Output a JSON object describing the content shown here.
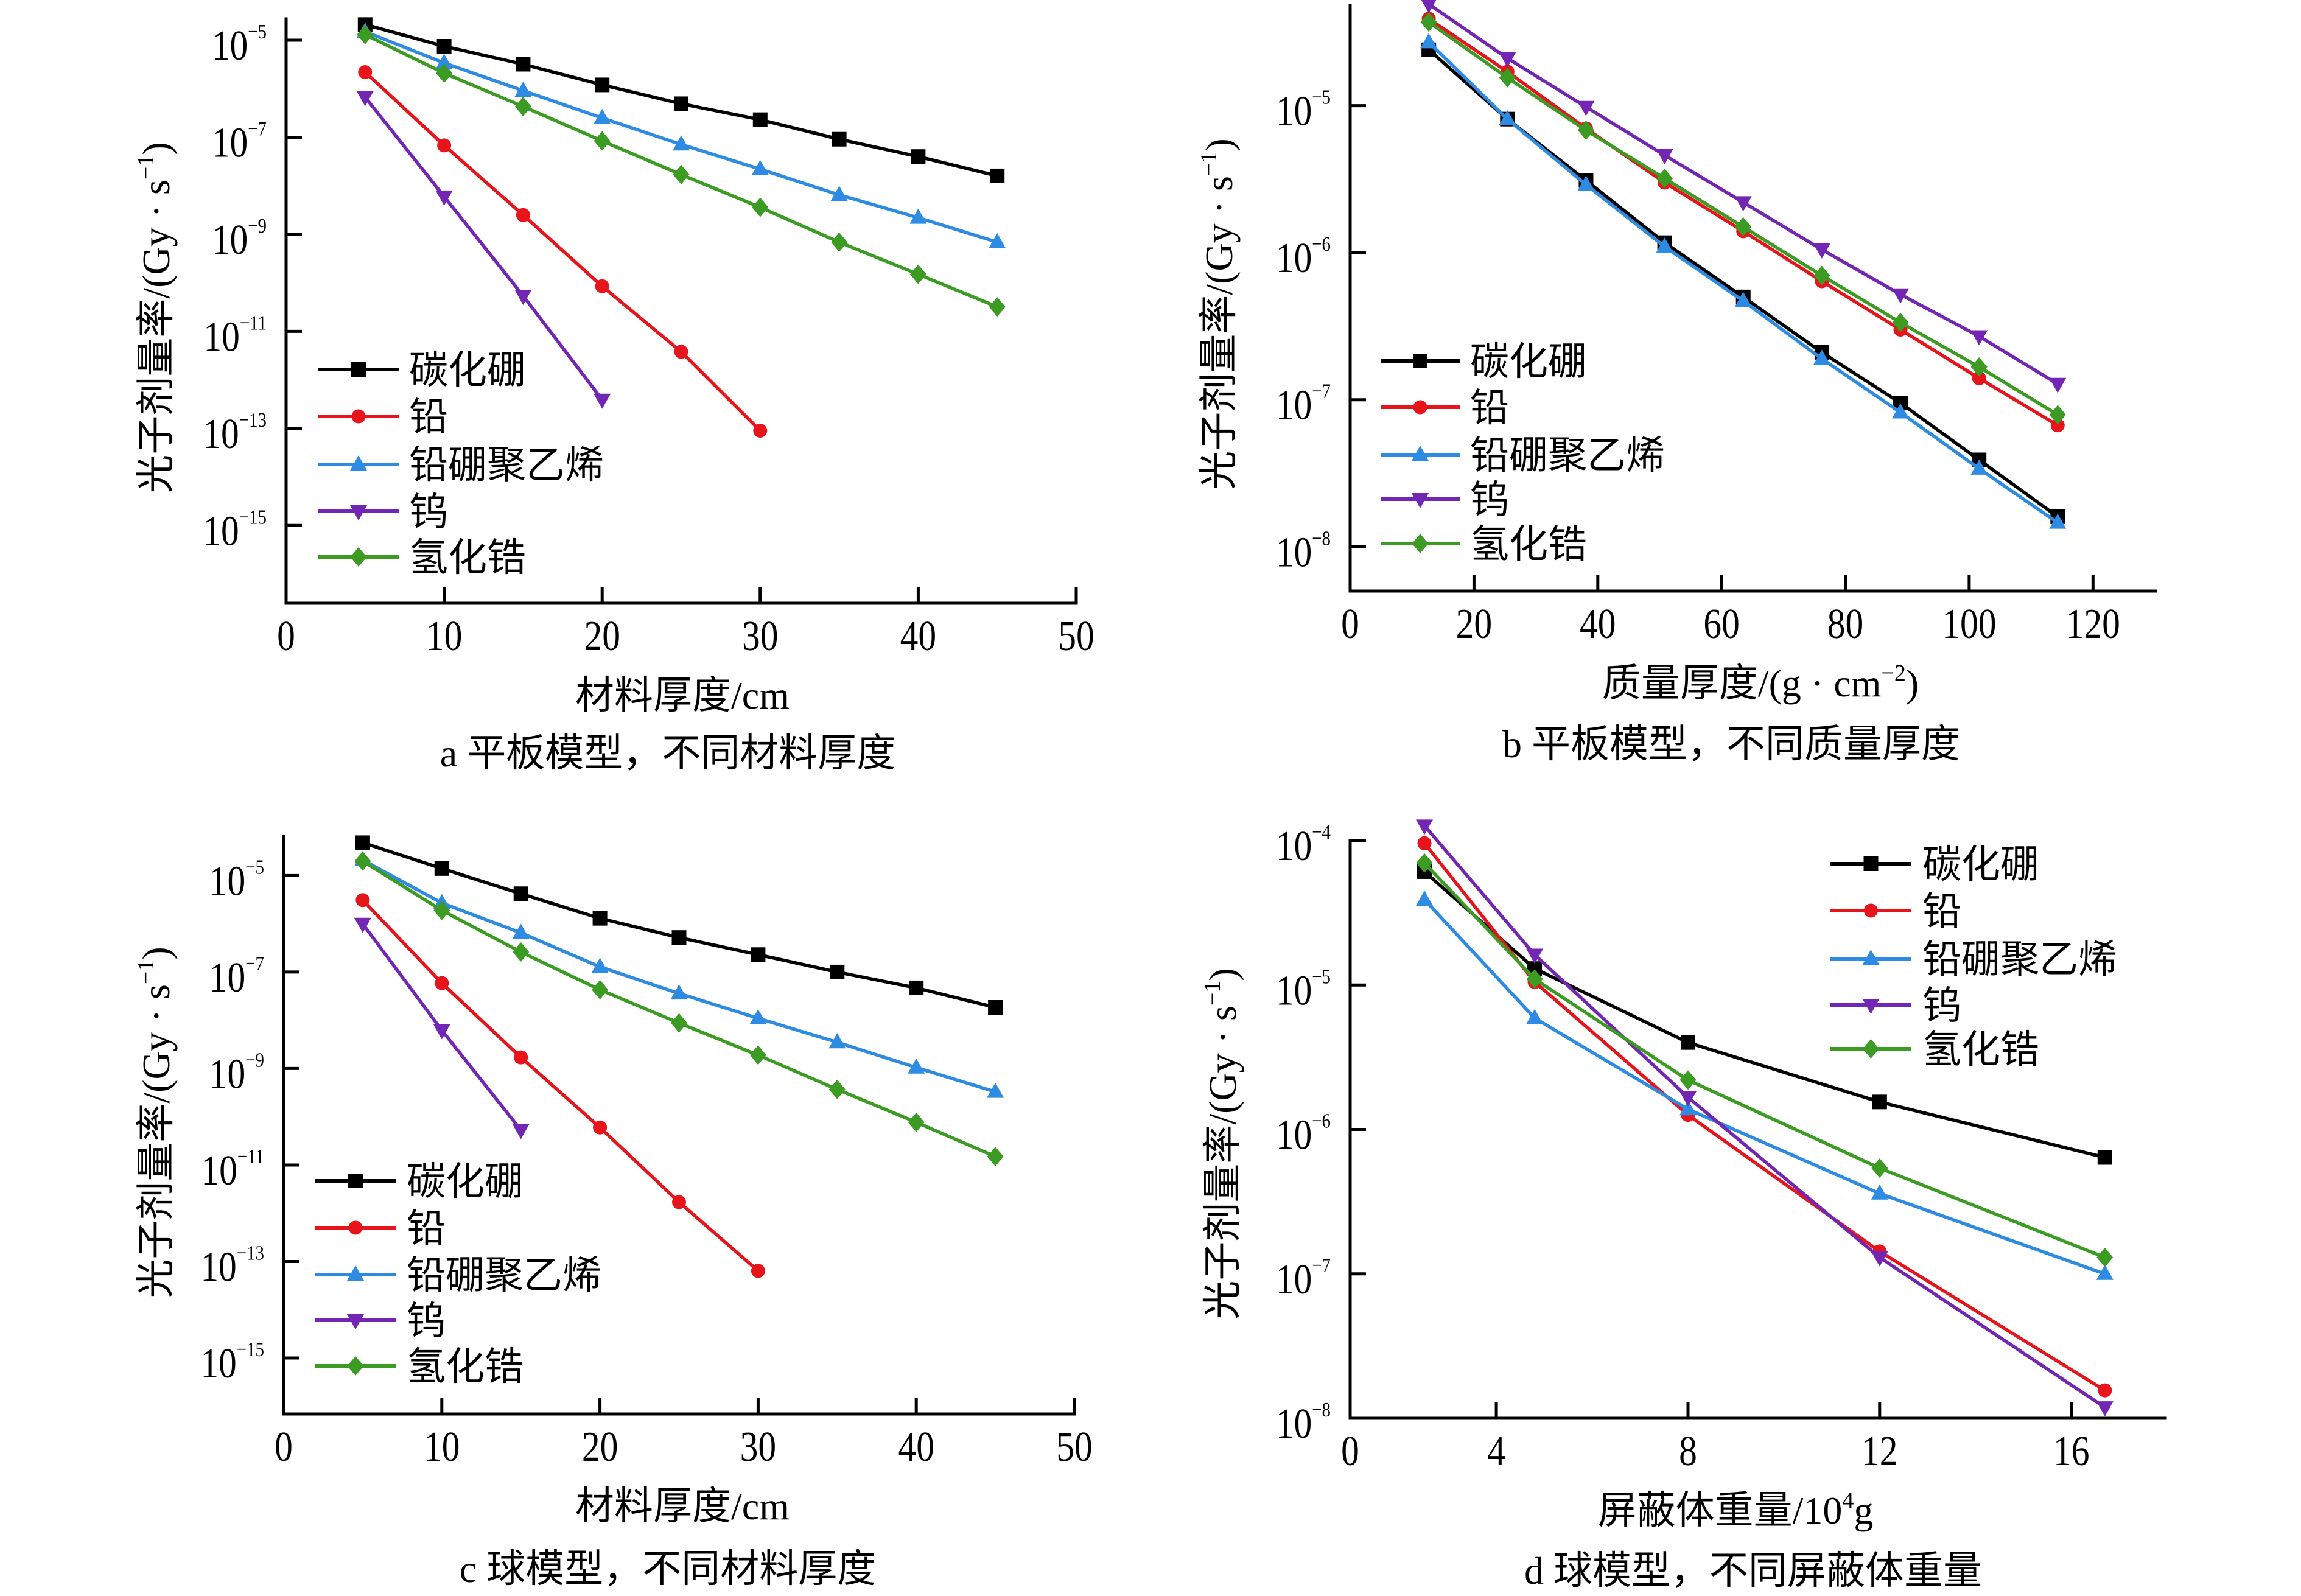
{
  "chart_data": [
    {
      "panel": "a",
      "type": "line",
      "caption": "a 平板模型，不同材料厚度",
      "xlabel": {
        "main": "材料厚度/cm"
      },
      "ylabel": {
        "main": "光子剂量率/(Gy · s",
        "sup": "−1",
        "tail": ")"
      },
      "x_scale": "linear",
      "y_scale": "log",
      "xlim": [
        0,
        50
      ],
      "ylim": [
        2.5e-17,
        2.75e-05
      ],
      "grid": false,
      "legend_position": "lower-left",
      "xticks": [
        {
          "value": 0,
          "label": "0"
        },
        {
          "value": 10,
          "label": "10"
        },
        {
          "value": 20,
          "label": "20"
        },
        {
          "value": 30,
          "label": "30"
        },
        {
          "value": 40,
          "label": "40"
        },
        {
          "value": 50,
          "label": "50"
        }
      ],
      "yticks": [
        {
          "value": 1e-05,
          "base": "10",
          "exp": "−5"
        },
        {
          "value": 1e-07,
          "base": "10",
          "exp": "−7"
        },
        {
          "value": 1e-09,
          "base": "10",
          "exp": "−9"
        },
        {
          "value": 1e-11,
          "base": "10",
          "exp": "−11"
        },
        {
          "value": 1e-13,
          "base": "10",
          "exp": "−13"
        },
        {
          "value": 1e-15,
          "base": "10",
          "exp": "−15"
        }
      ],
      "series": [
        {
          "name": "碳化硼",
          "color": "#000000",
          "marker": "square",
          "x": [
            5,
            10,
            15,
            20,
            25,
            30,
            35,
            40,
            45
          ],
          "y": [
            2.1e-05,
            7.5e-06,
            3.2e-06,
            1.2e-06,
            4.9e-07,
            2.3e-07,
            9.1e-08,
            4e-08,
            1.6e-08
          ]
        },
        {
          "name": "铅",
          "color": "#e8141b",
          "marker": "circle",
          "x": [
            5,
            10,
            15,
            20,
            25,
            30
          ],
          "y": [
            2.2e-06,
            6.8e-08,
            2.5e-09,
            8.5e-11,
            3.8e-12,
            9e-14
          ]
        },
        {
          "name": "铅硼聚乙烯",
          "color": "#2d8be3",
          "marker": "triangle-up",
          "x": [
            5,
            10,
            15,
            20,
            25,
            30,
            35,
            40,
            45
          ],
          "y": [
            1.5e-05,
            3.4e-06,
            9.1e-07,
            2.5e-07,
            7.1e-08,
            2.2e-08,
            6.5e-09,
            2.2e-09,
            6.9e-10
          ]
        },
        {
          "name": "钨",
          "color": "#7326b4",
          "marker": "triangle-down",
          "x": [
            5,
            10,
            15,
            20
          ],
          "y": [
            6.7e-07,
            6e-09,
            5.4e-11,
            3.9e-13
          ]
        },
        {
          "name": "氢化锆",
          "color": "#3c9b22",
          "marker": "diamond",
          "x": [
            5,
            10,
            15,
            20,
            25,
            30,
            35,
            40,
            45
          ],
          "y": [
            1.3e-05,
            2.1e-06,
            4.3e-07,
            8.4e-08,
            1.7e-08,
            3.6e-09,
            6.9e-10,
            1.5e-10,
            3.2e-11
          ]
        }
      ]
    },
    {
      "panel": "b",
      "type": "line",
      "caption": "b 平板模型，不同质量厚度",
      "xlabel": {
        "main": "质量厚度/(g · cm",
        "sup": "−2",
        "tail": ")"
      },
      "ylabel": {
        "main": "光子剂量率/(Gy · s",
        "sup": "−1",
        "tail": ")"
      },
      "x_scale": "linear",
      "y_scale": "log",
      "xlim": [
        0,
        130.1
      ],
      "ylim": [
        5e-09,
        4.8e-05
      ],
      "grid": false,
      "legend_position": "lower-left",
      "xticks": [
        {
          "value": 0,
          "label": "0"
        },
        {
          "value": 20,
          "label": "20"
        },
        {
          "value": 40,
          "label": "40"
        },
        {
          "value": 60,
          "label": "60"
        },
        {
          "value": 80,
          "label": "80"
        },
        {
          "value": 100,
          "label": "100"
        },
        {
          "value": 120,
          "label": "120"
        }
      ],
      "yticks": [
        {
          "value": 1e-05,
          "base": "10",
          "exp": "−5"
        },
        {
          "value": 1e-06,
          "base": "10",
          "exp": "−6"
        },
        {
          "value": 1e-07,
          "base": "10",
          "exp": "−7"
        },
        {
          "value": 1e-08,
          "base": "10",
          "exp": "−8"
        }
      ],
      "series": [
        {
          "name": "碳化硼",
          "color": "#000000",
          "marker": "square",
          "x": [
            12.7,
            25.4,
            38.1,
            50.8,
            63.5,
            76.2,
            88.9,
            101.6,
            114.3
          ],
          "y": [
            2.4e-05,
            8.1e-06,
            3.1e-06,
            1.17e-06,
            5e-07,
            2.1e-07,
            9.5e-08,
            3.9e-08,
            1.6e-08
          ]
        },
        {
          "name": "铅",
          "color": "#e8141b",
          "marker": "circle",
          "x": [
            12.7,
            25.4,
            38.1,
            50.8,
            63.5,
            76.2,
            88.9,
            101.6,
            114.3
          ],
          "y": [
            3.9e-05,
            1.7e-05,
            7e-06,
            3e-06,
            1.4e-06,
            6.4e-07,
            3e-07,
            1.4e-07,
            6.7e-08
          ]
        },
        {
          "name": "铅硼聚乙烯",
          "color": "#2d8be3",
          "marker": "triangle-up",
          "x": [
            12.7,
            25.4,
            38.1,
            50.8,
            63.5,
            76.2,
            88.9,
            101.6,
            114.3
          ],
          "y": [
            2.7e-05,
            8.1e-06,
            2.9e-06,
            1.1e-06,
            4.7e-07,
            1.9e-07,
            8.2e-08,
            3.4e-08,
            1.46e-08
          ]
        },
        {
          "name": "钨",
          "color": "#7326b4",
          "marker": "triangle-down",
          "x": [
            12.7,
            25.4,
            38.1,
            50.8,
            63.5,
            76.2,
            88.9,
            101.6,
            114.3
          ],
          "y": [
            4.9e-05,
            2.1e-05,
            9.8e-06,
            4.6e-06,
            2.2e-06,
            1.05e-06,
            5.2e-07,
            2.7e-07,
            1.28e-07
          ]
        },
        {
          "name": "氢化锆",
          "color": "#3c9b22",
          "marker": "diamond",
          "x": [
            12.7,
            25.4,
            38.1,
            50.8,
            63.5,
            76.2,
            88.9,
            101.6,
            114.3
          ],
          "y": [
            3.7e-05,
            1.55e-05,
            6.8e-06,
            3.2e-06,
            1.5e-06,
            7e-07,
            3.35e-07,
            1.67e-07,
            7.9e-08
          ]
        }
      ]
    },
    {
      "panel": "c",
      "type": "line",
      "caption": "c 球模型，不同材料厚度",
      "xlabel": {
        "main": "材料厚度/cm"
      },
      "ylabel": {
        "main": "光子剂量率/(Gy · s",
        "sup": "−1",
        "tail": ")"
      },
      "x_scale": "linear",
      "y_scale": "log",
      "xlim": [
        0,
        50
      ],
      "ylim": [
        6.9e-17,
        6.5e-05
      ],
      "grid": false,
      "legend_position": "lower-left",
      "xticks": [
        {
          "value": 0,
          "label": "0"
        },
        {
          "value": 10,
          "label": "10"
        },
        {
          "value": 20,
          "label": "20"
        },
        {
          "value": 30,
          "label": "30"
        },
        {
          "value": 40,
          "label": "40"
        },
        {
          "value": 50,
          "label": "50"
        }
      ],
      "yticks": [
        {
          "value": 1e-05,
          "base": "10",
          "exp": "−5"
        },
        {
          "value": 1e-07,
          "base": "10",
          "exp": "−7"
        },
        {
          "value": 1e-09,
          "base": "10",
          "exp": "−9"
        },
        {
          "value": 1e-11,
          "base": "10",
          "exp": "−11"
        },
        {
          "value": 1e-13,
          "base": "10",
          "exp": "−13"
        },
        {
          "value": 1e-15,
          "base": "10",
          "exp": "−15"
        }
      ],
      "series": [
        {
          "name": "碳化硼",
          "color": "#000000",
          "marker": "square",
          "x": [
            5,
            10,
            15,
            20,
            25,
            30,
            35,
            40,
            45
          ],
          "y": [
            4.8e-05,
            1.4e-05,
            4.2e-06,
            1.3e-06,
            5.2e-07,
            2.3e-07,
            1e-07,
            4.7e-08,
            1.85e-08
          ]
        },
        {
          "name": "铅",
          "color": "#e8141b",
          "marker": "circle",
          "x": [
            5,
            10,
            15,
            20,
            25,
            30
          ],
          "y": [
            3.1e-06,
            5.9e-08,
            1.7e-09,
            6e-11,
            1.7e-12,
            6.4e-14
          ]
        },
        {
          "name": "铅硼聚乙烯",
          "color": "#2d8be3",
          "marker": "triangle-up",
          "x": [
            5,
            10,
            15,
            20,
            25,
            30,
            35,
            40,
            45
          ],
          "y": [
            2.1e-05,
            2.7e-06,
            6.5e-07,
            1.28e-07,
            3.6e-08,
            1.1e-08,
            3.5e-09,
            1.05e-09,
            3.3e-10
          ]
        },
        {
          "name": "钨",
          "color": "#7326b4",
          "marker": "triangle-down",
          "x": [
            5,
            10,
            15
          ],
          "y": [
            1e-06,
            6.2e-09,
            5.3e-11
          ]
        },
        {
          "name": "氢化锆",
          "color": "#3c9b22",
          "marker": "diamond",
          "x": [
            5,
            10,
            15,
            20,
            25,
            30,
            35,
            40,
            45
          ],
          "y": [
            2e-05,
            1.9e-06,
            2.6e-07,
            4.3e-08,
            8.8e-09,
            1.9e-09,
            3.7e-10,
            7.7e-11,
            1.5e-11
          ]
        }
      ]
    },
    {
      "panel": "d",
      "type": "line",
      "caption": "d 球模型，不同屏蔽体重量",
      "xlabel": {
        "main": "屏蔽体重量/10",
        "sup": "4",
        "tail": "g"
      },
      "ylabel": {
        "main": "光子剂量率/(Gy · s",
        "sup": "−1",
        "tail": ")"
      },
      "x_scale": "linear",
      "y_scale": "log",
      "xlim": [
        0.95,
        17.96
      ],
      "ylim": [
        1e-08,
        0.0001
      ],
      "grid": false,
      "legend_position": "upper-right",
      "xticks": [
        {
          "value": 0.95,
          "label": "0"
        },
        {
          "value": 4,
          "label": "4"
        },
        {
          "value": 8,
          "label": "8"
        },
        {
          "value": 12,
          "label": "12"
        },
        {
          "value": 16,
          "label": "16"
        }
      ],
      "yticks": [
        {
          "value": 0.0001,
          "base": "10",
          "exp": "−4"
        },
        {
          "value": 1e-05,
          "base": "10",
          "exp": "−5"
        },
        {
          "value": 1e-06,
          "base": "10",
          "exp": "−6"
        },
        {
          "value": 1e-07,
          "base": "10",
          "exp": "−7"
        },
        {
          "value": 1e-08,
          "base": "10",
          "exp": "−8"
        }
      ],
      "series": [
        {
          "name": "碳化硼",
          "color": "#000000",
          "marker": "square",
          "x": [
            2.5,
            4.8,
            8.0,
            12.0,
            16.7
          ],
          "y": [
            6.1e-05,
            1.3e-05,
            4e-06,
            1.55e-06,
            6.4e-07
          ]
        },
        {
          "name": "铅",
          "color": "#e8141b",
          "marker": "circle",
          "x": [
            2.5,
            4.8,
            8.0,
            12.0,
            16.7
          ],
          "y": [
            9.6e-05,
            1.05e-05,
            1.26e-06,
            1.43e-07,
            1.56e-08
          ]
        },
        {
          "name": "铅硼聚乙烯",
          "color": "#2d8be3",
          "marker": "triangle-up",
          "x": [
            2.5,
            4.8,
            8.0,
            12.0,
            16.7
          ],
          "y": [
            3.9e-05,
            5.9e-06,
            1.38e-06,
            3.6e-07,
            1e-07
          ]
        },
        {
          "name": "钨",
          "color": "#7326b4",
          "marker": "triangle-down",
          "x": [
            2.5,
            4.8,
            8.0,
            12.0,
            16.7
          ],
          "y": [
            0.000127,
            1.62e-05,
            1.67e-06,
            1.3e-07,
            1.19e-08
          ]
        },
        {
          "name": "氢化锆",
          "color": "#3c9b22",
          "marker": "diamond",
          "x": [
            2.5,
            4.8,
            8.0,
            12.0,
            16.7
          ],
          "y": [
            7e-05,
            1.1e-05,
            2.2e-06,
            5.4e-07,
            1.3e-07
          ]
        }
      ]
    }
  ]
}
